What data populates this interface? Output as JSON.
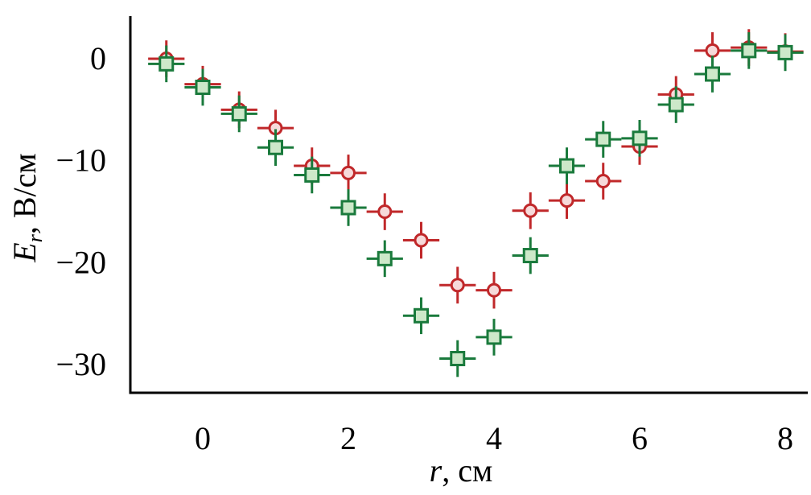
{
  "chart_data": {
    "type": "scatter",
    "xlabel": {
      "symbol": "r",
      "unit": ", см"
    },
    "ylabel": {
      "symbol": "E",
      "subscript": "r",
      "unit": ", В/см"
    },
    "xlim": [
      -1,
      8
    ],
    "ylim": [
      -33,
      4
    ],
    "x_ticks": [
      0,
      2,
      4,
      6,
      8
    ],
    "x_tick_labels": [
      "0",
      "2",
      "4",
      "6",
      "8"
    ],
    "y_ticks": [
      0,
      -10,
      -20,
      -30
    ],
    "y_tick_labels": [
      "0",
      "−10",
      "−20",
      "−30"
    ],
    "grid": false,
    "legend": "none",
    "x_error": 0.25,
    "y_error": 1.8,
    "series": [
      {
        "marker": "circle",
        "color": "#c0282a",
        "fill": "#f6dada",
        "x": [
          -0.5,
          0,
          0.5,
          1,
          1.5,
          2,
          2.5,
          3,
          3.5,
          4,
          4.5,
          5,
          5.5,
          6,
          6.5,
          7,
          7.5,
          8
        ],
        "y": [
          0,
          -2.5,
          -5,
          -6.8,
          -10.5,
          -11.2,
          -15,
          -17.8,
          -22.2,
          -22.7,
          -14.9,
          -13.9,
          -12,
          -8.6,
          -3.5,
          0.8,
          1.1,
          0.7
        ]
      },
      {
        "marker": "square",
        "color": "#1a7a3c",
        "fill": "#cde8c9",
        "x": [
          -0.5,
          0,
          0.5,
          1,
          1.5,
          2,
          2.5,
          3,
          3.5,
          4,
          4.5,
          5,
          5.5,
          6,
          6.5,
          7,
          7.5,
          8
        ],
        "y": [
          -0.5,
          -2.8,
          -5.4,
          -8.7,
          -11.4,
          -14.6,
          -19.6,
          -25.2,
          -29.4,
          -27.3,
          -19.3,
          -10.5,
          -7.9,
          -7.8,
          -4.5,
          -1.5,
          0.8,
          0.6
        ]
      }
    ]
  }
}
